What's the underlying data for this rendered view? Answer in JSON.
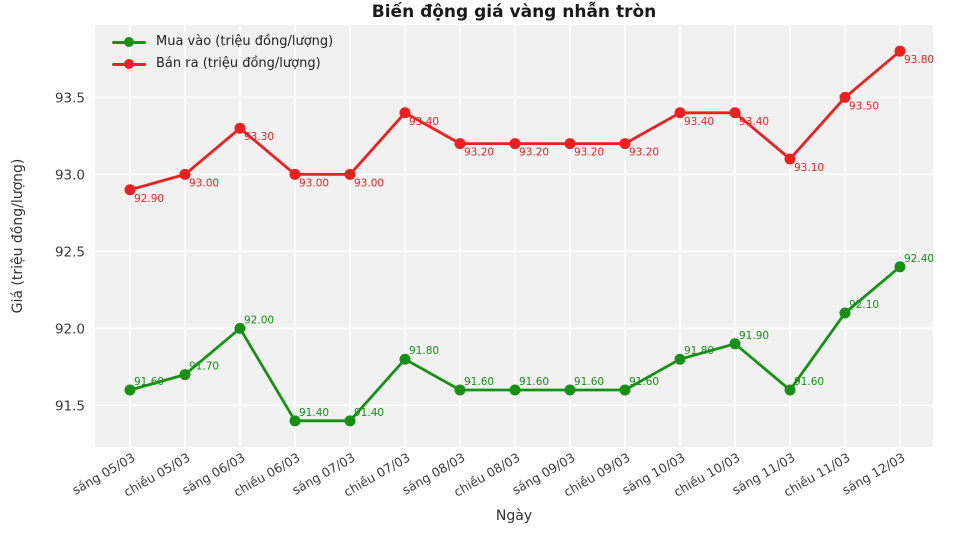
{
  "title": "Biến động giá vàng nhẫn tròn",
  "chart_data": {
    "type": "line",
    "title": "Biến động giá vàng nhẫn tròn",
    "xlabel": "Ngày",
    "ylabel": "Giá (triệu đồng/lượng)",
    "categories": [
      "sáng 05/03",
      "chiều 05/03",
      "sáng 06/03",
      "chiều 06/03",
      "sáng 07/03",
      "chiều 07/03",
      "sáng 08/03",
      "chiều 08/03",
      "sáng 09/03",
      "chiều 09/03",
      "sáng 10/03",
      "chiều 10/03",
      "sáng 11/03",
      "chiều 11/03",
      "sáng 12/03"
    ],
    "series": [
      {
        "name": "Mua vào (triệu đồng/lượng)",
        "color": "#169116",
        "values": [
          91.6,
          91.7,
          92.0,
          91.4,
          91.4,
          91.8,
          91.6,
          91.6,
          91.6,
          91.6,
          91.8,
          91.9,
          91.6,
          92.1,
          92.4
        ],
        "labels": [
          "91.60",
          "91.70",
          "92.00",
          "91.40",
          "91.40",
          "91.80",
          "91.60",
          "91.60",
          "91.60",
          "91.60",
          "91.80",
          "91.90",
          "91.60",
          "92.10",
          "92.40"
        ],
        "label_offset": [
          4,
          -5
        ]
      },
      {
        "name": "Bán ra (triệu đồng/lượng)",
        "color": "#ee1f1f",
        "values": [
          92.9,
          93.0,
          93.3,
          93.0,
          93.0,
          93.4,
          93.2,
          93.2,
          93.2,
          93.2,
          93.4,
          93.4,
          93.1,
          93.5,
          93.8
        ],
        "labels": [
          "92.90",
          "93.00",
          "93.30",
          "93.00",
          "93.00",
          "93.40",
          "93.20",
          "93.20",
          "93.20",
          "93.20",
          "93.40",
          "93.40",
          "93.10",
          "93.50",
          "93.80"
        ],
        "label_offset": [
          4,
          12
        ]
      }
    ],
    "yticks": [
      91.5,
      92.0,
      92.5,
      93.0,
      93.5
    ],
    "ytick_labels": [
      "91.5",
      "92.0",
      "92.5",
      "93.0",
      "93.5"
    ],
    "ylim": [
      91.23,
      93.97
    ],
    "grid": true,
    "grid_color": "#ffffff",
    "plot_bg": "#f1f1f1",
    "legend_position": "top-left",
    "tick_color": "#3c3c3c"
  }
}
